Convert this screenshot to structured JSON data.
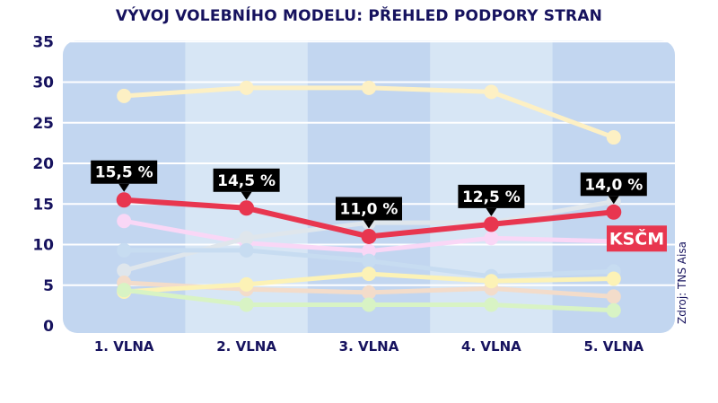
{
  "chart_data": {
    "type": "line",
    "title": "VÝVOJ VOLEBNÍHO MODELU: PŘEHLED PODPORY STRAN",
    "categories": [
      "1. VLNA",
      "2. VLNA",
      "3. VLNA",
      "4. VLNA",
      "5. VLNA"
    ],
    "ylim": [
      0,
      35
    ],
    "yticks": [
      "0",
      "5",
      "10",
      "15",
      "20",
      "25",
      "30",
      "35"
    ],
    "grid": true,
    "source": "Zdroj: TNS Aisa",
    "highlight": {
      "name": "KSČM",
      "values": [
        15.5,
        14.5,
        11.0,
        12.5,
        14.0
      ],
      "labels": [
        "15,5 %",
        "14,5 %",
        "11,0 %",
        "12,5 %",
        "14,0 %"
      ],
      "color": "#e8364f"
    },
    "background_series": [
      {
        "values": [
          28.3,
          29.3,
          29.3,
          28.8,
          23.2
        ],
        "color": "#fdf0c4"
      },
      {
        "values": [
          12.9,
          10.2,
          9.2,
          10.8,
          10.4
        ],
        "color": "#f9d7f6"
      },
      {
        "values": [
          6.8,
          10.8,
          12.7,
          12.7,
          15.3
        ],
        "color": "#dfe6ec"
      },
      {
        "values": [
          9.3,
          9.3,
          8.0,
          6.1,
          6.7
        ],
        "color": "#c7dcf1"
      },
      {
        "values": [
          5.3,
          4.5,
          4.1,
          4.6,
          3.6
        ],
        "color": "#f3dcca"
      },
      {
        "values": [
          4.2,
          5.1,
          6.4,
          5.5,
          5.8
        ],
        "color": "#fcf2b6"
      },
      {
        "values": [
          4.4,
          2.6,
          2.6,
          2.6,
          1.9
        ],
        "color": "#d8f3c4"
      }
    ],
    "colors": {
      "band_dark": "#c2d6f0",
      "band_light": "#d7e6f5",
      "label_bg": "#000000",
      "text": "#16125e"
    }
  }
}
